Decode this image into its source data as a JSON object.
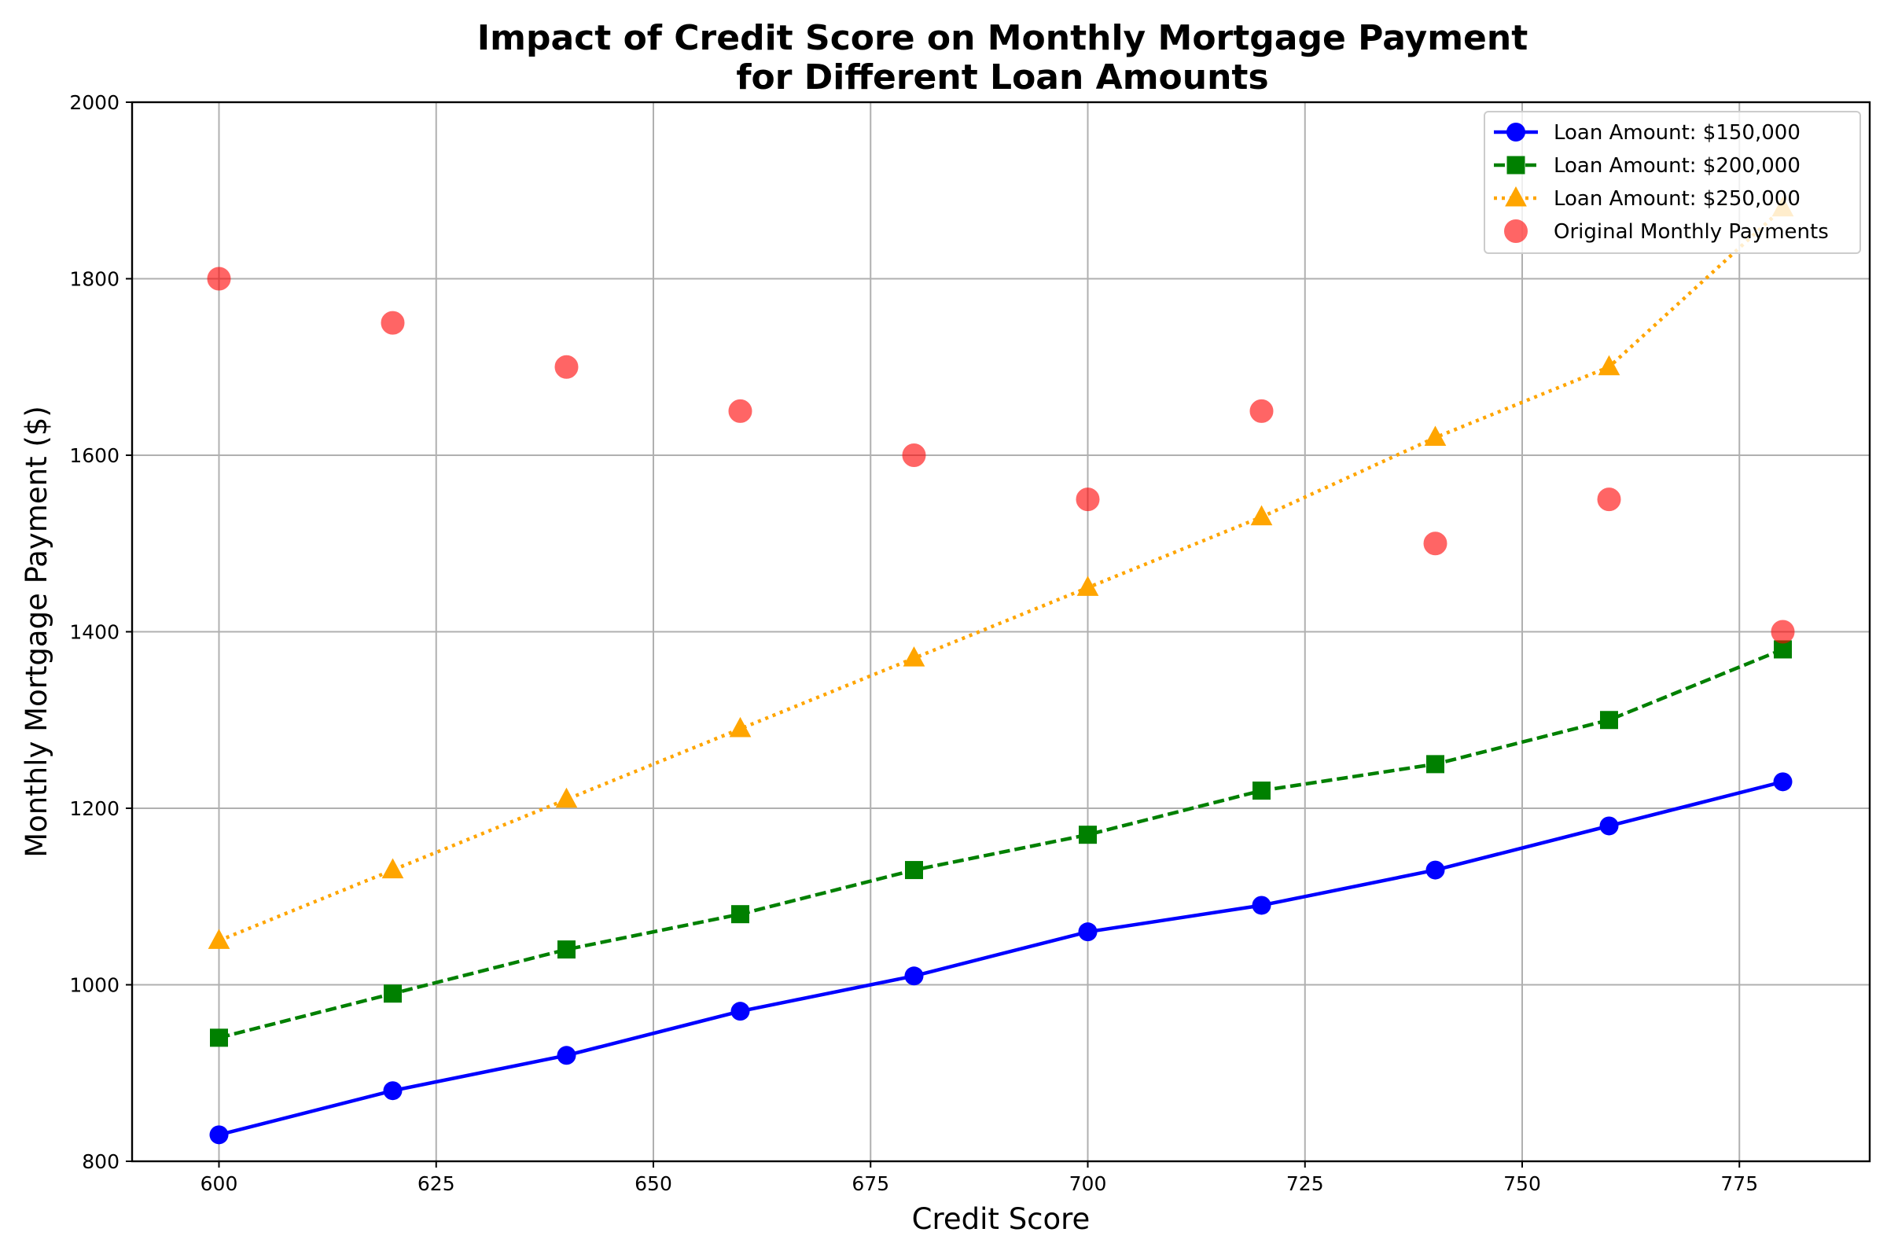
{
  "chart_data": {
    "type": "line",
    "title": [
      "Impact of Credit Score on Monthly Mortgage Payment",
      "for Different Loan Amounts"
    ],
    "xlabel": "Credit Score",
    "ylabel": "Monthly Mortgage Payment ($)",
    "xlim": [
      590,
      790
    ],
    "ylim": [
      800,
      2000
    ],
    "xticks": [
      600,
      625,
      650,
      675,
      700,
      725,
      750,
      775
    ],
    "yticks": [
      800,
      1000,
      1200,
      1400,
      1600,
      1800,
      2000
    ],
    "grid": true,
    "legend_position": "top-right",
    "x": [
      600,
      620,
      640,
      660,
      680,
      700,
      720,
      740,
      760,
      780
    ],
    "series": [
      {
        "name": "Loan Amount: $150,000",
        "kind": "line",
        "color": "#0000ff",
        "line_style": "solid",
        "marker": "circle",
        "values": [
          830,
          880,
          920,
          970,
          1010,
          1060,
          1090,
          1130,
          1180,
          1230
        ]
      },
      {
        "name": "Loan Amount: $200,000",
        "kind": "line",
        "color": "#008000",
        "line_style": "dashed",
        "marker": "square",
        "values": [
          940,
          990,
          1040,
          1080,
          1130,
          1170,
          1220,
          1250,
          1300,
          1380
        ]
      },
      {
        "name": "Loan Amount: $250,000",
        "kind": "line",
        "color": "#ffa500",
        "line_style": "dotted",
        "marker": "triangle",
        "values": [
          1050,
          1130,
          1210,
          1290,
          1370,
          1450,
          1530,
          1620,
          1700,
          1880
        ]
      },
      {
        "name": "Original Monthly Payments",
        "kind": "scatter",
        "color": "#ff0000",
        "opacity": 0.6,
        "marker": "circle",
        "values": [
          1800,
          1750,
          1700,
          1650,
          1600,
          1550,
          1650,
          1500,
          1550,
          1400
        ]
      }
    ]
  }
}
